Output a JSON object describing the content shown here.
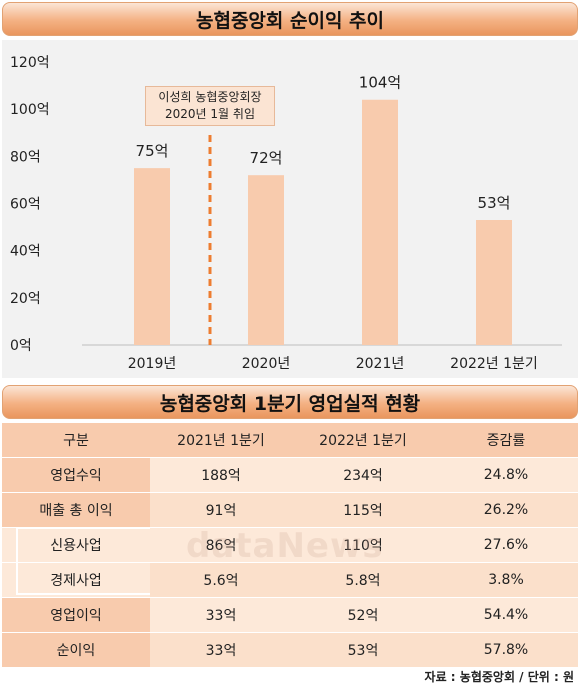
{
  "title": "농협중앙회 순이익 추이",
  "annotation": {
    "line1": "이성희 농협중앙회장",
    "line2": "2020년 1월 취임"
  },
  "chart_data": {
    "type": "bar",
    "title": "농협중앙회 순이익 추이",
    "categories": [
      "2019년",
      "2020년",
      "2021년",
      "2022년 1분기"
    ],
    "values": [
      75,
      72,
      104,
      53
    ],
    "value_labels": [
      "75억",
      "72억",
      "104억",
      "53억"
    ],
    "y_ticks": [
      "0억",
      "20억",
      "40억",
      "60억",
      "80억",
      "100억",
      "120억"
    ],
    "ylim": [
      0,
      120
    ],
    "grid": false,
    "bar_color": "#f8cbad",
    "marker_color": "#ed7d31"
  },
  "table": {
    "title": "농협중앙회 1분기 영업실적 현황",
    "headers": [
      "구분",
      "2021년 1분기",
      "2022년 1분기",
      "증감률"
    ],
    "rows": [
      [
        "영업수익",
        "188억",
        "234억",
        "24.8%"
      ],
      [
        "매출 총 이익",
        "91억",
        "115억",
        "26.2%"
      ],
      [
        "신용사업",
        "86억",
        "110억",
        "27.6%"
      ],
      [
        "경제사업",
        "5.6억",
        "5.8억",
        "3.8%"
      ],
      [
        "영업이익",
        "33억",
        "52억",
        "54.4%"
      ],
      [
        "순이익",
        "33억",
        "53억",
        "57.8%"
      ]
    ]
  },
  "watermark": "dataNews",
  "source": "자료 : 농협중앙회 / 단위 : 원"
}
